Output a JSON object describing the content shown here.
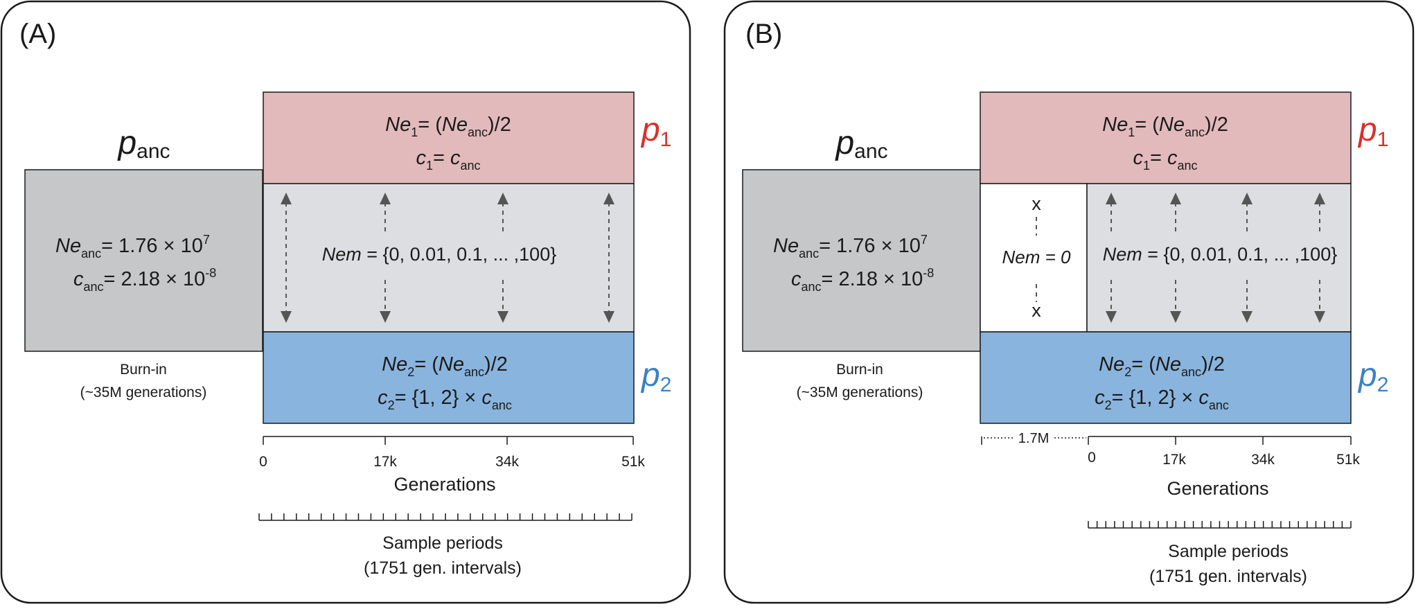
{
  "panels": [
    {
      "label": "(A)",
      "ancestral": {
        "name_base": "p",
        "name_sub": "anc",
        "ne_base": "Ne",
        "ne_sub": "anc",
        "ne_value": "= 1.76 × 10",
        "ne_exp": "7",
        "c_base": "c",
        "c_sub": "anc",
        "c_value": "= 2.18 × 10",
        "c_exp": "-8",
        "caption_1": "Burn-in",
        "caption_2": "(~35M generations)"
      },
      "pop1": {
        "label_base": "p",
        "label_sub": "1",
        "ne_base": "Ne",
        "ne_sub": "1",
        "ne_mid": "= (",
        "ne_inner": "Ne",
        "ne_inner_sub": "anc",
        "ne_end": ")/2",
        "c_base": "c",
        "c_sub": "1",
        "c_mid": "= ",
        "c_inner": "c",
        "c_inner_sub": "anc",
        "color": "#e2babb"
      },
      "migration": {
        "label_italic": "Nem",
        "label_rest": " = {0, 0.01, 0.1, ... ,100}",
        "color": "#dcdee1"
      },
      "pop2": {
        "label_base": "p",
        "label_sub": "2",
        "ne_base": "Ne",
        "ne_sub": "2",
        "ne_mid": "= (",
        "ne_inner": "Ne",
        "ne_inner_sub": "anc",
        "ne_end": ")/2",
        "c_base": "c",
        "c_sub": "2",
        "c_mid": "= {1, 2} × ",
        "c_inner": "c",
        "c_inner_sub": "anc",
        "color": "#89b4dd"
      },
      "axis": {
        "ticks": [
          "0",
          "17k",
          "34k",
          "51k"
        ],
        "title": "Generations"
      },
      "samples": {
        "line_1": "Sample periods",
        "line_2": "(1751 gen. intervals)"
      }
    },
    {
      "label": "(B)",
      "ancestral": {
        "name_base": "p",
        "name_sub": "anc",
        "ne_base": "Ne",
        "ne_sub": "anc",
        "ne_value": "= 1.76 × 10",
        "ne_exp": "7",
        "c_base": "c",
        "c_sub": "anc",
        "c_value": "= 2.18 × 10",
        "c_exp": "-8",
        "caption_1": "Burn-in",
        "caption_2": "(~35M generations)"
      },
      "pop1": {
        "label_base": "p",
        "label_sub": "1",
        "ne_base": "Ne",
        "ne_sub": "1",
        "ne_mid": "= (",
        "ne_inner": "Ne",
        "ne_inner_sub": "anc",
        "ne_end": ")/2",
        "c_base": "c",
        "c_sub": "1",
        "c_mid": "= ",
        "c_inner": "c",
        "c_inner_sub": "anc",
        "color": "#e2babb"
      },
      "isolation": {
        "label": "Nem = 0",
        "mark": "x",
        "color": "#ffffff"
      },
      "migration": {
        "label_italic": "Nem",
        "label_rest": " = {0, 0.01, 0.1, ... ,100}",
        "color": "#dcdee1"
      },
      "pop2": {
        "label_base": "p",
        "label_sub": "2",
        "ne_base": "Ne",
        "ne_sub": "2",
        "ne_mid": "= (",
        "ne_inner": "Ne",
        "ne_inner_sub": "anc",
        "ne_end": ")/2",
        "c_base": "c",
        "c_sub": "2",
        "c_mid": "= {1, 2} × ",
        "c_inner": "c",
        "c_inner_sub": "anc",
        "color": "#89b4dd"
      },
      "pre_period": "1.7M",
      "axis": {
        "ticks": [
          "0",
          "17k",
          "34k",
          "51k"
        ],
        "title": "Generations"
      },
      "samples": {
        "line_1": "Sample periods",
        "line_2": "(1751 gen. intervals)"
      }
    }
  ],
  "colors": {
    "p1_label": "#d9302c",
    "p2_label": "#3b82c4",
    "ancestral_box": "#c6c7c9",
    "arrow": "#555555"
  }
}
